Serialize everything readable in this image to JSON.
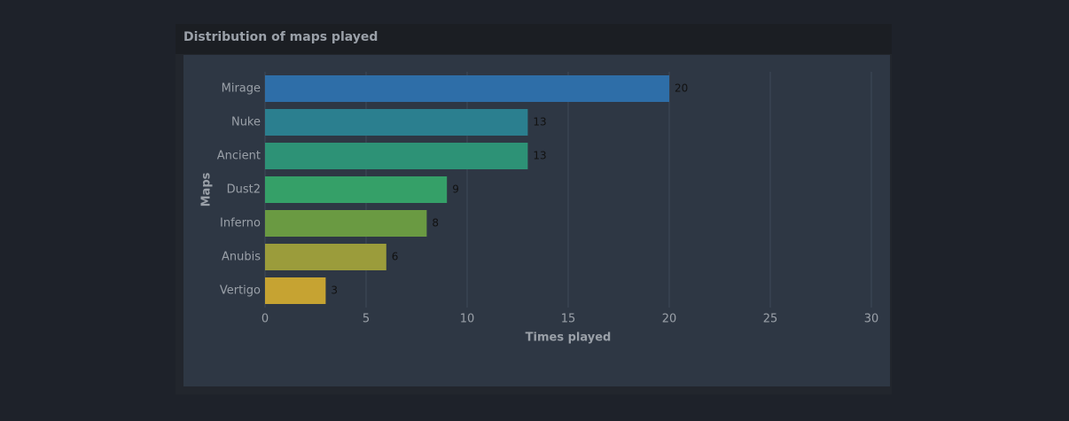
{
  "chart_data": {
    "type": "barh",
    "title": "Distribution of maps played",
    "xlabel": "Times played",
    "ylabel": "Maps",
    "categories": [
      "Mirage",
      "Nuke",
      "Ancient",
      "Dust2",
      "Inferno",
      "Anubis",
      "Vertigo"
    ],
    "values": [
      20,
      13,
      13,
      9,
      8,
      6,
      3
    ],
    "colors": [
      "#2e6ea8",
      "#2b7f8f",
      "#2d9276",
      "#35a068",
      "#6a9a42",
      "#9b9c3b",
      "#c6a332"
    ],
    "xlim": [
      0,
      30
    ],
    "xticks": [
      0,
      5,
      10,
      15,
      20,
      25,
      30
    ],
    "grid": true
  }
}
